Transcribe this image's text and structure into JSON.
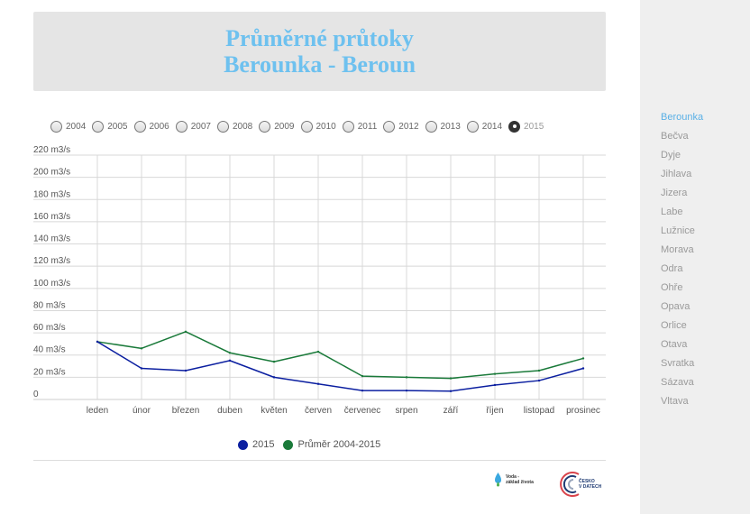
{
  "title": {
    "line1": "Průměrné průtoky",
    "line2": "Berounka - Beroun"
  },
  "years": [
    {
      "label": "2004",
      "selected": false
    },
    {
      "label": "2005",
      "selected": false
    },
    {
      "label": "2006",
      "selected": false
    },
    {
      "label": "2007",
      "selected": false
    },
    {
      "label": "2008",
      "selected": false
    },
    {
      "label": "2009",
      "selected": false
    },
    {
      "label": "2010",
      "selected": false
    },
    {
      "label": "2011",
      "selected": false
    },
    {
      "label": "2012",
      "selected": false
    },
    {
      "label": "2013",
      "selected": false
    },
    {
      "label": "2014",
      "selected": false
    },
    {
      "label": "2015",
      "selected": true
    }
  ],
  "chart_data": {
    "type": "line",
    "title": "Průměrné průtoky Berounka - Beroun",
    "categories": [
      "leden",
      "únor",
      "březen",
      "duben",
      "květen",
      "červen",
      "červenec",
      "srpen",
      "září",
      "říjen",
      "listopad",
      "prosinec"
    ],
    "y_ticks": [
      {
        "value": 0,
        "label": "0"
      },
      {
        "value": 20,
        "label": "20 m3/s"
      },
      {
        "value": 40,
        "label": "40 m3/s"
      },
      {
        "value": 60,
        "label": "60 m3/s"
      },
      {
        "value": 80,
        "label": "80 m3/s"
      },
      {
        "value": 100,
        "label": "100 m3/s"
      },
      {
        "value": 120,
        "label": "120 m3/s"
      },
      {
        "value": 140,
        "label": "140 m3/s"
      },
      {
        "value": 160,
        "label": "160 m3/s"
      },
      {
        "value": 180,
        "label": "180 m3/s"
      },
      {
        "value": 200,
        "label": "200 m3/s"
      },
      {
        "value": 220,
        "label": "220 m3/s"
      }
    ],
    "ylim": [
      0,
      220
    ],
    "grid": true,
    "legend_position": "bottom",
    "series": [
      {
        "name": "2015",
        "color": "#0b1fa0",
        "values": [
          52,
          28,
          26,
          35,
          20,
          14,
          8,
          8,
          7.5,
          13,
          17,
          28
        ]
      },
      {
        "name": "Průměr 2004-2015",
        "color": "#1a7a3a",
        "values": [
          52,
          46,
          61,
          42,
          34,
          43,
          21,
          20,
          19,
          23,
          26,
          37
        ]
      }
    ]
  },
  "logos": {
    "voda_line1": "Voda -",
    "voda_line2": "základ života",
    "cesko_line1": "ČESKO",
    "cesko_line2": "V DATECH"
  },
  "sidebar": {
    "rivers": [
      {
        "label": "Berounka",
        "active": true
      },
      {
        "label": "Bečva",
        "active": false
      },
      {
        "label": "Dyje",
        "active": false
      },
      {
        "label": "Jihlava",
        "active": false
      },
      {
        "label": "Jizera",
        "active": false
      },
      {
        "label": "Labe",
        "active": false
      },
      {
        "label": "Lužnice",
        "active": false
      },
      {
        "label": "Morava",
        "active": false
      },
      {
        "label": "Odra",
        "active": false
      },
      {
        "label": "Ohře",
        "active": false
      },
      {
        "label": "Opava",
        "active": false
      },
      {
        "label": "Orlice",
        "active": false
      },
      {
        "label": "Otava",
        "active": false
      },
      {
        "label": "Svratka",
        "active": false
      },
      {
        "label": "Sázava",
        "active": false
      },
      {
        "label": "Vltava",
        "active": false
      }
    ]
  }
}
